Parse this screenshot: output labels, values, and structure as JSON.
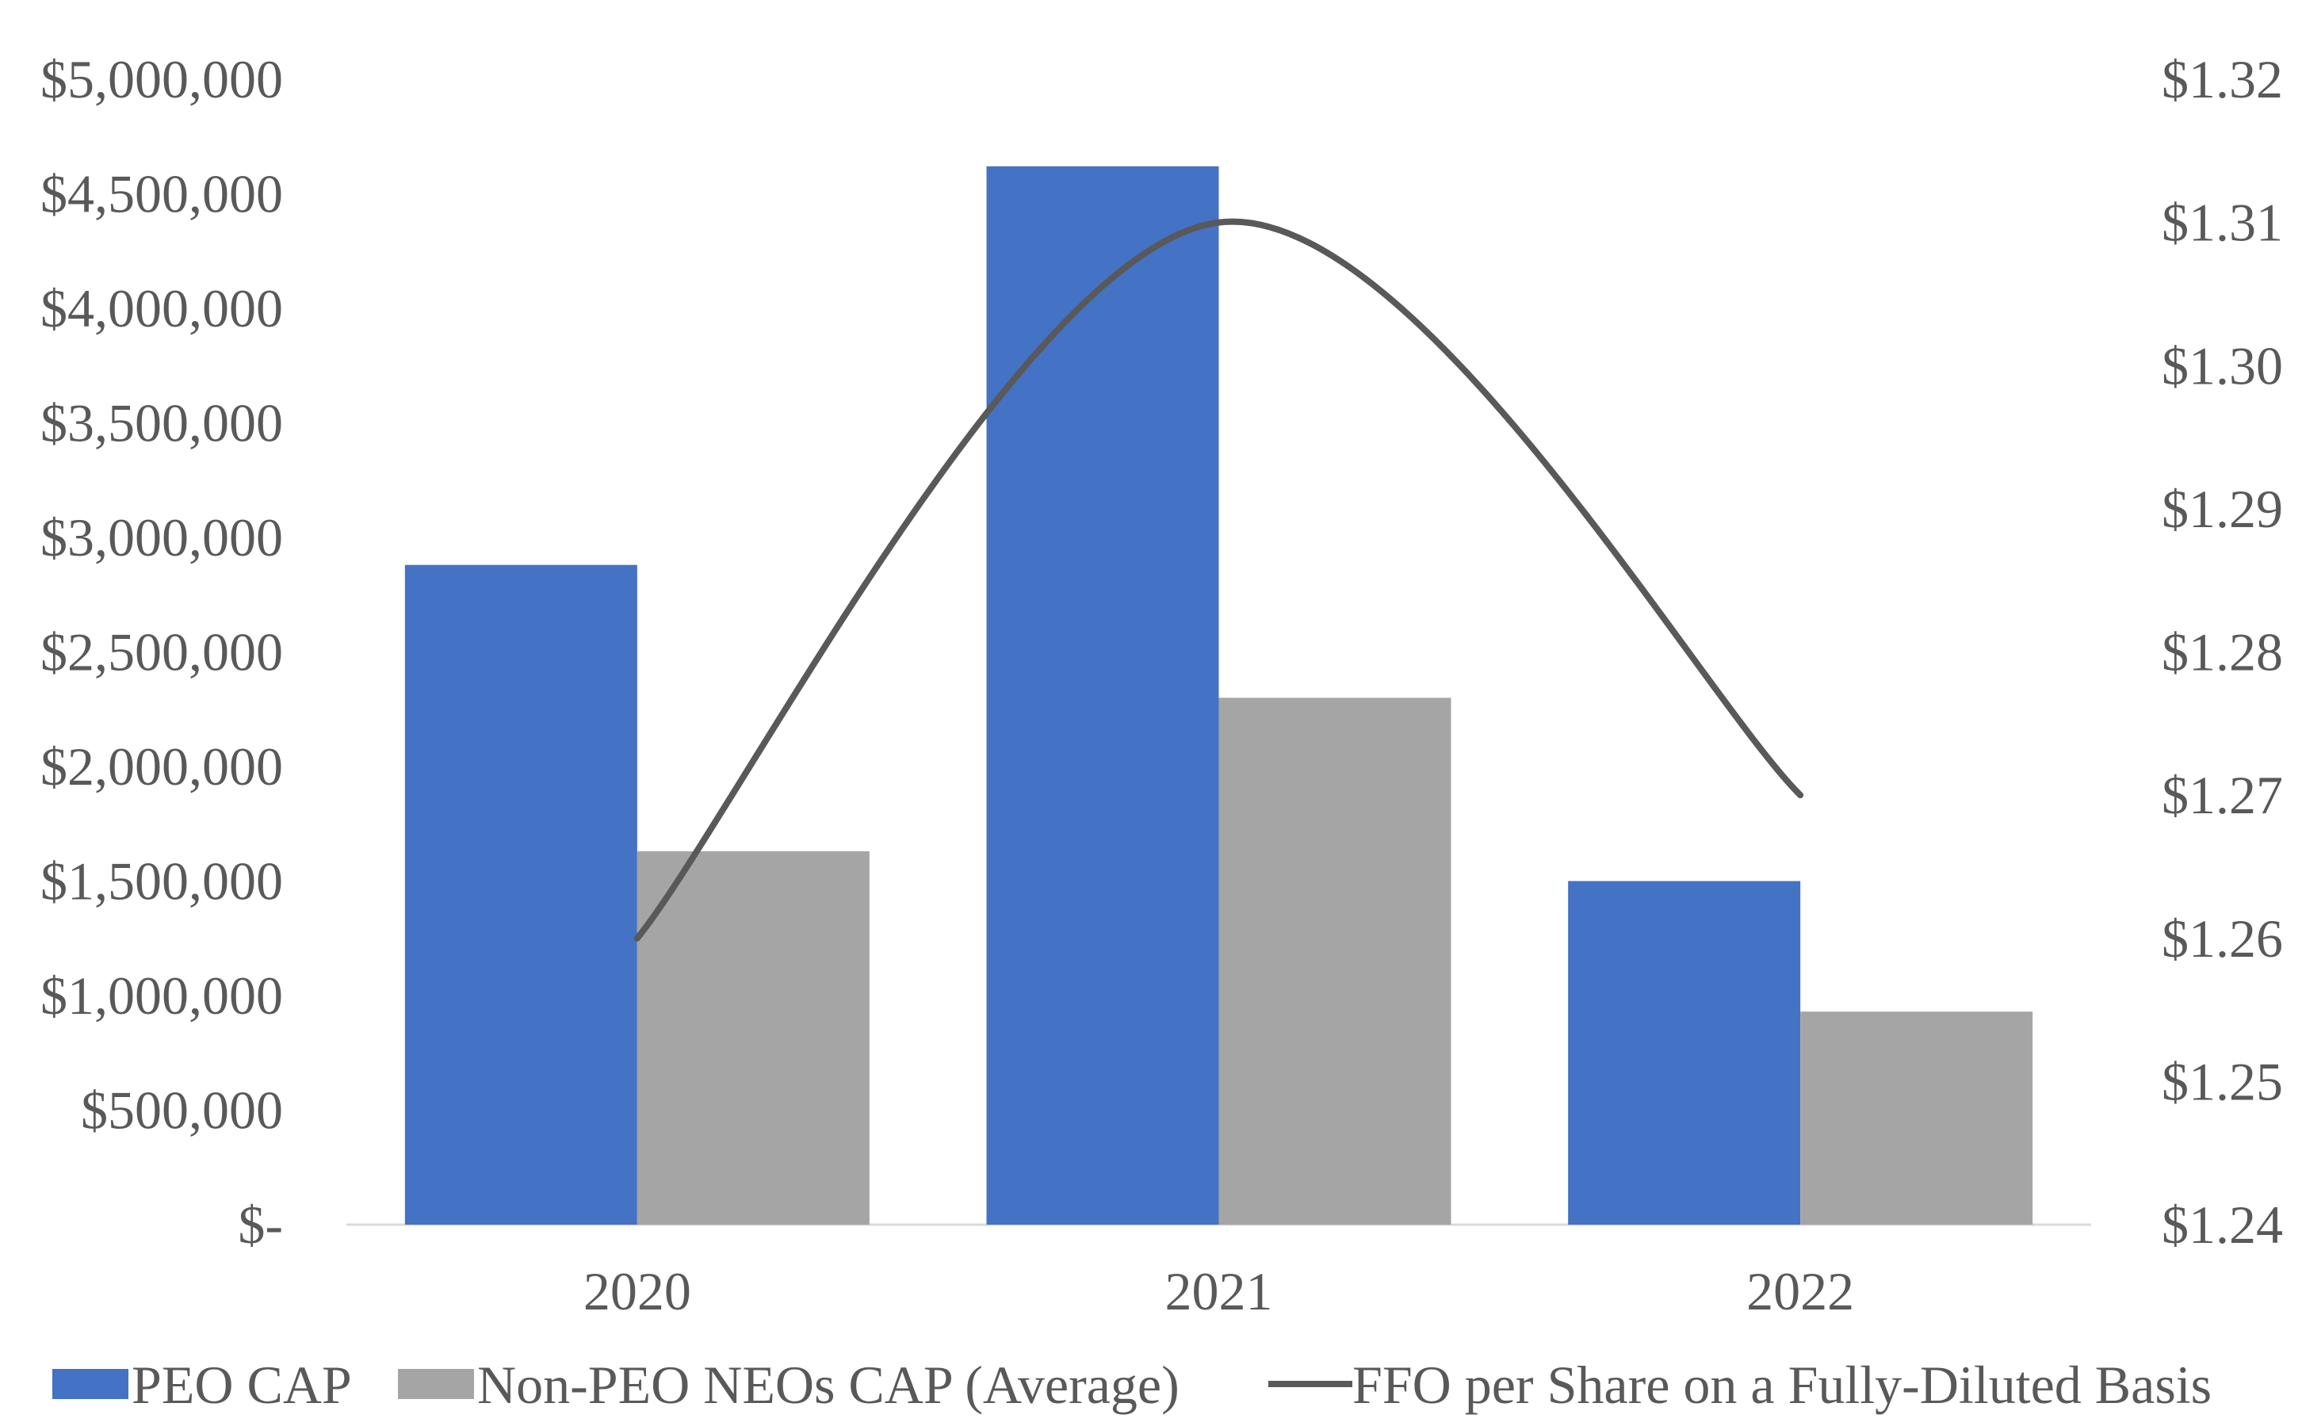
{
  "chart_data": {
    "type": "bar",
    "title": "",
    "xlabel": "",
    "ylabel": "",
    "categories": [
      "2020",
      "2021",
      "2022"
    ],
    "series": [
      {
        "name": "PEO CAP",
        "kind": "bar",
        "axis": "left",
        "color": "#4472C4",
        "values": [
          2880000,
          4620000,
          1500000
        ]
      },
      {
        "name": "Non-PEO NEOs CAP (Average)",
        "kind": "bar",
        "axis": "left",
        "color": "#A5A5A5",
        "values": [
          1630000,
          2300000,
          930000
        ]
      },
      {
        "name": "FFO per Share on a Fully-Diluted Basis",
        "kind": "line",
        "axis": "right",
        "color": "#595959",
        "values": [
          1.26,
          1.31,
          1.27
        ]
      }
    ],
    "y_left": {
      "ylim": [
        0,
        5000000
      ],
      "ticks": [
        0,
        500000,
        1000000,
        1500000,
        2000000,
        2500000,
        3000000,
        3500000,
        4000000,
        4500000,
        5000000
      ],
      "tick_labels": [
        "$-",
        "$500,000",
        "$1,000,000",
        "$1,500,000",
        "$2,000,000",
        "$2,500,000",
        "$3,000,000",
        "$3,500,000",
        "$4,000,000",
        "$4,500,000",
        "$5,000,000"
      ]
    },
    "y_right": {
      "ylim": [
        1.24,
        1.32
      ],
      "ticks": [
        1.24,
        1.25,
        1.26,
        1.27,
        1.28,
        1.29,
        1.3,
        1.31,
        1.32
      ],
      "tick_labels": [
        "$1.24",
        "$1.25",
        "$1.26",
        "$1.27",
        "$1.28",
        "$1.29",
        "$1.30",
        "$1.31",
        "$1.32"
      ]
    },
    "grid": false,
    "legend": "bottom"
  }
}
